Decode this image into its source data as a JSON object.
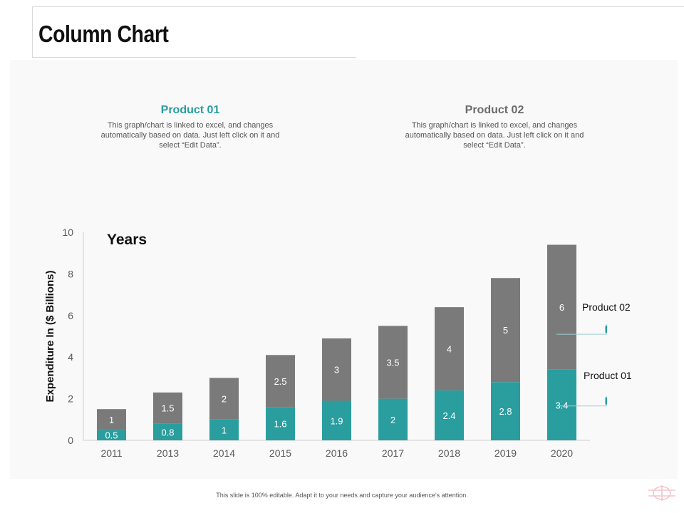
{
  "slide": {
    "title": "Column Chart",
    "footer": "This slide is 100% editable. Adapt it to your needs and capture your audience's attention."
  },
  "products": [
    {
      "title": "Product 01",
      "description": "This graph/chart is linked to excel, and changes automatically based on data. Just left click on it and select “Edit Data”.",
      "color": "#2a9d9f"
    },
    {
      "title": "Product 02",
      "description": "This graph/chart is linked to excel, and changes automatically based on data. Just left click on it and select “Edit Data”.",
      "color": "#6b6b6b"
    }
  ],
  "chart_data": {
    "type": "bar",
    "stacked": true,
    "title": "Years",
    "ylabel": "Expenditure In ($ Billions)",
    "ylim": [
      0,
      10
    ],
    "yticks": [
      0,
      2,
      4,
      6,
      8,
      10
    ],
    "categories": [
      "2011",
      "2013",
      "2014",
      "2015",
      "2016",
      "2017",
      "2018",
      "2019",
      "2020"
    ],
    "series": [
      {
        "name": "Product 01",
        "color": "#2a9d9f",
        "values": [
          0.5,
          0.8,
          1,
          1.6,
          1.9,
          2,
          2.4,
          2.8,
          3.4
        ]
      },
      {
        "name": "Product 02",
        "color": "#7a7a7a",
        "values": [
          1,
          1.5,
          2,
          2.5,
          3,
          3.5,
          4,
          5,
          6
        ]
      }
    ],
    "legend": "right"
  }
}
